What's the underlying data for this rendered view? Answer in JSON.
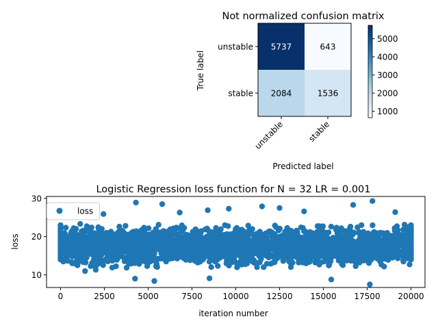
{
  "chart_data": [
    {
      "type": "heatmap",
      "title": "Not normalized confusion matrix",
      "xlabel": "Predicted label",
      "ylabel": "True label",
      "x_categories": [
        "unstable",
        "stable"
      ],
      "y_categories": [
        "unstable",
        "stable"
      ],
      "values": [
        [
          5737,
          643
        ],
        [
          2084,
          1536
        ]
      ],
      "colormap": "Blues",
      "low_color": "#f7fbff",
      "high_color": "#08306b",
      "colorbar": {
        "ticks": [
          "1000",
          "2000",
          "3000",
          "4000",
          "5000"
        ],
        "tick_values": [
          1000,
          2000,
          3000,
          4000,
          5000
        ],
        "range": [
          643,
          5737
        ]
      }
    },
    {
      "type": "scatter",
      "title": "Logistic Regression loss function for N = 32 LR = 0.001",
      "xlabel": "iteration number",
      "ylabel": "loss",
      "xlim": [
        -800,
        20800
      ],
      "ylim": [
        6.7,
        30.5
      ],
      "x_ticks": [
        "0",
        "2500",
        "5000",
        "7500",
        "10000",
        "12500",
        "15000",
        "17500",
        "20000"
      ],
      "x_tick_values": [
        0,
        2500,
        5000,
        7500,
        10000,
        12500,
        15000,
        17500,
        20000
      ],
      "y_ticks": [
        "10",
        "20",
        "30"
      ],
      "y_tick_values": [
        10,
        20,
        30
      ],
      "legend": {
        "label": "loss",
        "position": "upper-left"
      },
      "series_color": "#1f77b4",
      "series": [
        {
          "name": "loss",
          "band": {
            "x_start": 0,
            "x_end": 20000,
            "y_low": 11,
            "y_high": 24
          },
          "outliers": [
            {
              "x": 4300,
              "y": 28.9
            },
            {
              "x": 5800,
              "y": 28.5
            },
            {
              "x": 9600,
              "y": 27.3
            },
            {
              "x": 11500,
              "y": 27.9
            },
            {
              "x": 12500,
              "y": 27.5
            },
            {
              "x": 16700,
              "y": 28.3
            },
            {
              "x": 17800,
              "y": 29.3
            },
            {
              "x": 19100,
              "y": 26.4
            },
            {
              "x": 2450,
              "y": 25.9
            },
            {
              "x": 6800,
              "y": 26.3
            },
            {
              "x": 8400,
              "y": 26.9
            },
            {
              "x": 13900,
              "y": 26.6
            },
            {
              "x": 17650,
              "y": 7.5
            },
            {
              "x": 5350,
              "y": 8.4
            },
            {
              "x": 15450,
              "y": 8.8
            },
            {
              "x": 4250,
              "y": 9.0
            },
            {
              "x": 8500,
              "y": 9.1
            },
            {
              "x": 1400,
              "y": 11.0
            }
          ]
        }
      ]
    }
  ]
}
